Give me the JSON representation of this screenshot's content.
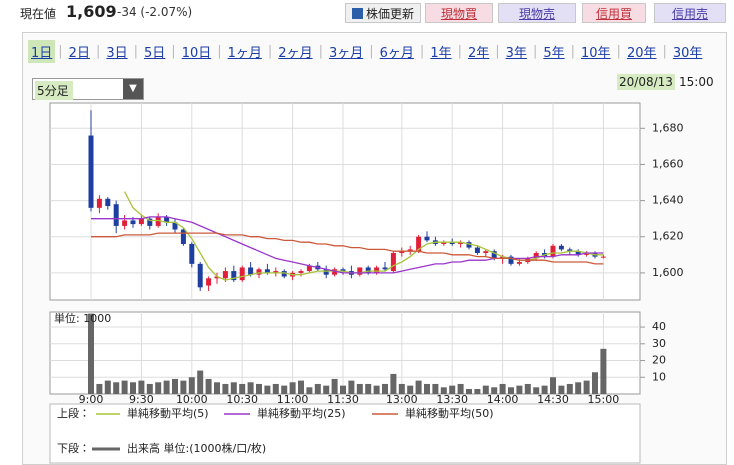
{
  "header": {
    "price_label": "現在値",
    "price": "1,609",
    "change": "-34 (-2.07%)",
    "refresh_button": "株価更新",
    "buttons": [
      "現物買",
      "現物売",
      "信用買",
      "信用売"
    ],
    "tabs": [
      "1日",
      "2日",
      "3日",
      "5日",
      "10日",
      "1ヶ月",
      "2ヶ月",
      "3ヶ月",
      "6ヶ月",
      "1年",
      "2年",
      "3年",
      "5年",
      "10年",
      "20年",
      "30年"
    ],
    "interval": "5分足",
    "date": "20/08/13",
    "time": "15:00"
  },
  "chart_data": [
    {
      "type": "candlestick",
      "legend_label": "上段：",
      "up_color": "#e0203a",
      "down_color": "#1f3fa0",
      "grid": true,
      "categories": [
        "9:00",
        null,
        null,
        null,
        null,
        null,
        "9:30",
        null,
        null,
        null,
        null,
        null,
        "10:00",
        null,
        null,
        null,
        null,
        null,
        "10:30",
        null,
        null,
        null,
        null,
        null,
        "11:00",
        null,
        null,
        null,
        null,
        null,
        "11:30",
        null,
        null,
        null,
        null,
        null,
        null,
        "13:00",
        null,
        null,
        null,
        null,
        null,
        "13:30",
        null,
        null,
        null,
        null,
        null,
        "14:00",
        null,
        null,
        null,
        null,
        null,
        "14:30",
        null,
        null,
        null,
        null,
        null,
        "15:00"
      ],
      "open": [
        1676,
        1636,
        1641,
        1638,
        1626,
        1629,
        1627,
        1630,
        1626,
        1631,
        1628,
        1624,
        1616,
        1605,
        1593,
        1597,
        1597,
        1601,
        1596,
        1603,
        1599,
        1602,
        1600,
        1601,
        1598,
        1600,
        1601,
        1604,
        1602,
        1599,
        1602,
        1601,
        1599,
        1603,
        1600,
        1603,
        1601,
        1611,
        1612,
        1612,
        1620,
        1618,
        1616,
        1617,
        1616,
        1617,
        1614,
        1611,
        1612,
        1608,
        1609,
        1605,
        1606,
        1608,
        1611,
        1609,
        1615,
        1613,
        1612,
        1610,
        1611,
        1609
      ],
      "high": [
        1690,
        1643,
        1642,
        1640,
        1632,
        1631,
        1632,
        1631,
        1633,
        1632,
        1630,
        1625,
        1617,
        1606,
        1598,
        1600,
        1603,
        1604,
        1604,
        1606,
        1603,
        1605,
        1603,
        1602,
        1601,
        1602,
        1605,
        1606,
        1604,
        1603,
        1603,
        1604,
        1603,
        1604,
        1604,
        1606,
        1612,
        1614,
        1615,
        1621,
        1623,
        1620,
        1618,
        1619,
        1618,
        1618,
        1615,
        1613,
        1613,
        1610,
        1610,
        1608,
        1609,
        1612,
        1613,
        1616,
        1616,
        1614,
        1613,
        1612,
        1612,
        1610
      ],
      "low": [
        1634,
        1633,
        1635,
        1622,
        1624,
        1625,
        1626,
        1624,
        1625,
        1626,
        1622,
        1615,
        1603,
        1590,
        1590,
        1594,
        1595,
        1595,
        1595,
        1598,
        1597,
        1599,
        1598,
        1597,
        1596,
        1598,
        1600,
        1601,
        1597,
        1598,
        1599,
        1597,
        1598,
        1599,
        1599,
        1601,
        1600,
        1609,
        1610,
        1611,
        1617,
        1615,
        1615,
        1615,
        1614,
        1613,
        1610,
        1609,
        1607,
        1605,
        1604,
        1604,
        1605,
        1607,
        1608,
        1608,
        1612,
        1610,
        1609,
        1609,
        1608,
        1608
      ],
      "close": [
        1636,
        1641,
        1637,
        1626,
        1629,
        1627,
        1630,
        1626,
        1631,
        1628,
        1624,
        1616,
        1605,
        1592,
        1597,
        1598,
        1601,
        1596,
        1603,
        1599,
        1602,
        1600,
        1601,
        1598,
        1600,
        1601,
        1604,
        1602,
        1599,
        1602,
        1601,
        1599,
        1603,
        1600,
        1603,
        1602,
        1611,
        1612,
        1613,
        1620,
        1618,
        1616,
        1617,
        1616,
        1617,
        1614,
        1611,
        1612,
        1608,
        1609,
        1605,
        1606,
        1608,
        1611,
        1609,
        1615,
        1613,
        1612,
        1610,
        1611,
        1609,
        1609
      ],
      "series": [
        {
          "name": "単純移動平均(5)",
          "color": "#a8c43a",
          "values": [
            null,
            null,
            null,
            null,
            1645,
            1636,
            1632,
            1629,
            1629,
            1628,
            1628,
            1625,
            1619,
            1611,
            1603,
            1598,
            1596,
            1597,
            1598,
            1599,
            1600,
            1600,
            1600,
            1600,
            1599,
            1599,
            1600,
            1601,
            1601,
            1601,
            1601,
            1600,
            1600,
            1601,
            1601,
            1601,
            1604,
            1606,
            1609,
            1613,
            1616,
            1617,
            1617,
            1617,
            1617,
            1616,
            1615,
            1613,
            1611,
            1609,
            1608,
            1607,
            1607,
            1608,
            1610,
            1611,
            1611,
            1612,
            1612,
            1611,
            1610,
            1610
          ]
        },
        {
          "name": "単純移動平均(25)",
          "color": "#9a36cc",
          "values": [
            1630,
            1630,
            1630,
            1630,
            1630,
            1630,
            1630,
            1631,
            1631,
            1631,
            1630,
            1629,
            1628,
            1626,
            1624,
            1622,
            1620,
            1618,
            1616,
            1614,
            1612,
            1610,
            1608,
            1607,
            1606,
            1605,
            1604,
            1603,
            1602,
            1601,
            1600,
            1600,
            1600,
            1600,
            1600,
            1600,
            1600,
            1601,
            1602,
            1603,
            1604,
            1605,
            1605,
            1606,
            1606,
            1607,
            1607,
            1607,
            1608,
            1608,
            1608,
            1608,
            1608,
            1609,
            1609,
            1609,
            1610,
            1610,
            1610,
            1611,
            1611,
            1611
          ]
        },
        {
          "name": "単純移動平均(50)",
          "color": "#cc5a3a",
          "values": [
            1620,
            1620,
            1620,
            1620,
            1621,
            1621,
            1621,
            1621,
            1622,
            1622,
            1622,
            1622,
            1622,
            1622,
            1622,
            1622,
            1621,
            1621,
            1621,
            1620,
            1620,
            1619,
            1619,
            1618,
            1618,
            1617,
            1617,
            1616,
            1616,
            1615,
            1615,
            1614,
            1614,
            1613,
            1613,
            1613,
            1612,
            1612,
            1612,
            1612,
            1611,
            1611,
            1611,
            1610,
            1610,
            1610,
            1609,
            1609,
            1608,
            1608,
            1608,
            1607,
            1607,
            1607,
            1607,
            1606,
            1606,
            1606,
            1606,
            1606,
            1605,
            1605
          ]
        }
      ],
      "ylim": [
        1585,
        1694
      ],
      "yticks": [
        {
          "value": 1600,
          "label": "1,600"
        },
        {
          "value": 1620,
          "label": "1,620"
        },
        {
          "value": 1640,
          "label": "1,640"
        },
        {
          "value": 1660,
          "label": "1,660"
        },
        {
          "value": 1680,
          "label": "1,680"
        }
      ]
    },
    {
      "type": "bar",
      "legend_label": "下段：",
      "y_label": "単位: 1000",
      "grid": true,
      "series": [
        {
          "name": "出来高 単位:(1000株/口/枚)",
          "color": "#666666",
          "values": [
            48,
            6,
            8,
            7,
            8,
            7,
            8,
            6,
            7,
            8,
            9,
            8,
            10,
            14,
            9,
            7,
            6,
            7,
            6,
            7,
            6,
            5,
            6,
            5,
            7,
            8,
            4,
            6,
            5,
            9,
            5,
            8,
            6,
            6,
            5,
            6,
            12,
            6,
            5,
            8,
            6,
            6,
            4,
            5,
            6,
            3,
            3,
            5,
            4,
            6,
            4,
            5,
            6,
            4,
            5,
            10,
            5,
            6,
            7,
            8,
            13,
            27
          ]
        }
      ],
      "ylim": [
        0,
        49
      ],
      "yticks": [
        10,
        20,
        30,
        40
      ]
    }
  ]
}
